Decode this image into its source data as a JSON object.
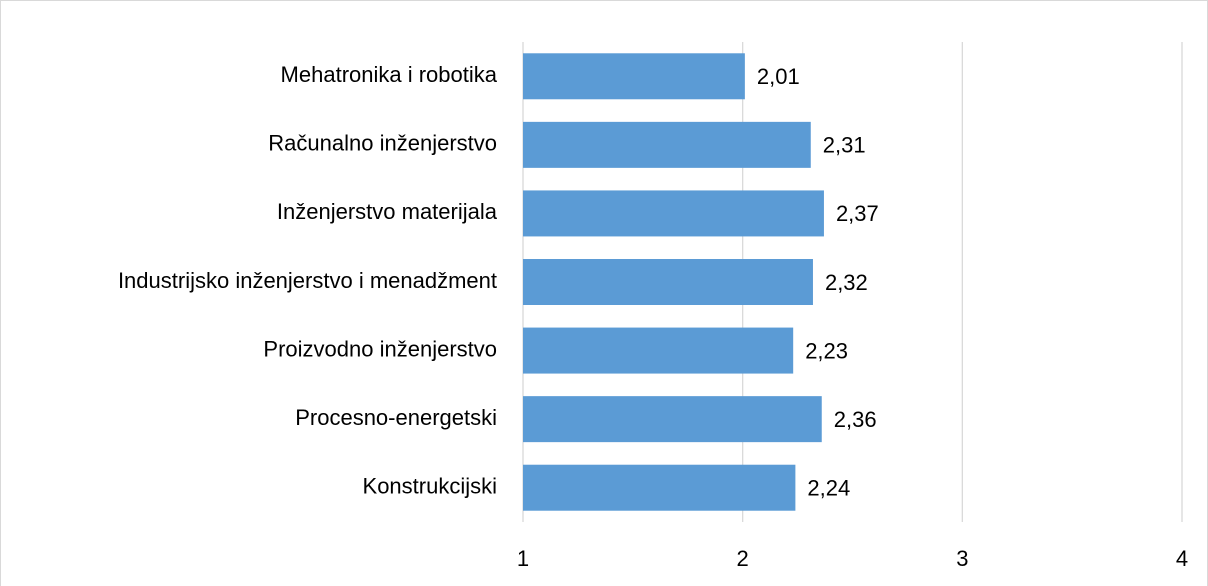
{
  "chart_data": {
    "type": "bar",
    "categories": [
      "Mehatronika i robotika",
      "Računalno inženjerstvo",
      "Inženjerstvo materijala",
      "Industrijsko inženjerstvo i menadžment",
      "Proizvodno inženjerstvo",
      "Procesno-energetski",
      "Konstrukcijski"
    ],
    "values": [
      2.01,
      2.31,
      2.37,
      2.32,
      2.23,
      2.36,
      2.24
    ],
    "value_labels": [
      "2,01",
      "2,31",
      "2,37",
      "2,32",
      "2,23",
      "2,36",
      "2,24"
    ],
    "color": "#5b9bd5",
    "xlim": [
      1,
      4
    ],
    "xticks": [
      1,
      2,
      3,
      4
    ],
    "grid": true
  }
}
